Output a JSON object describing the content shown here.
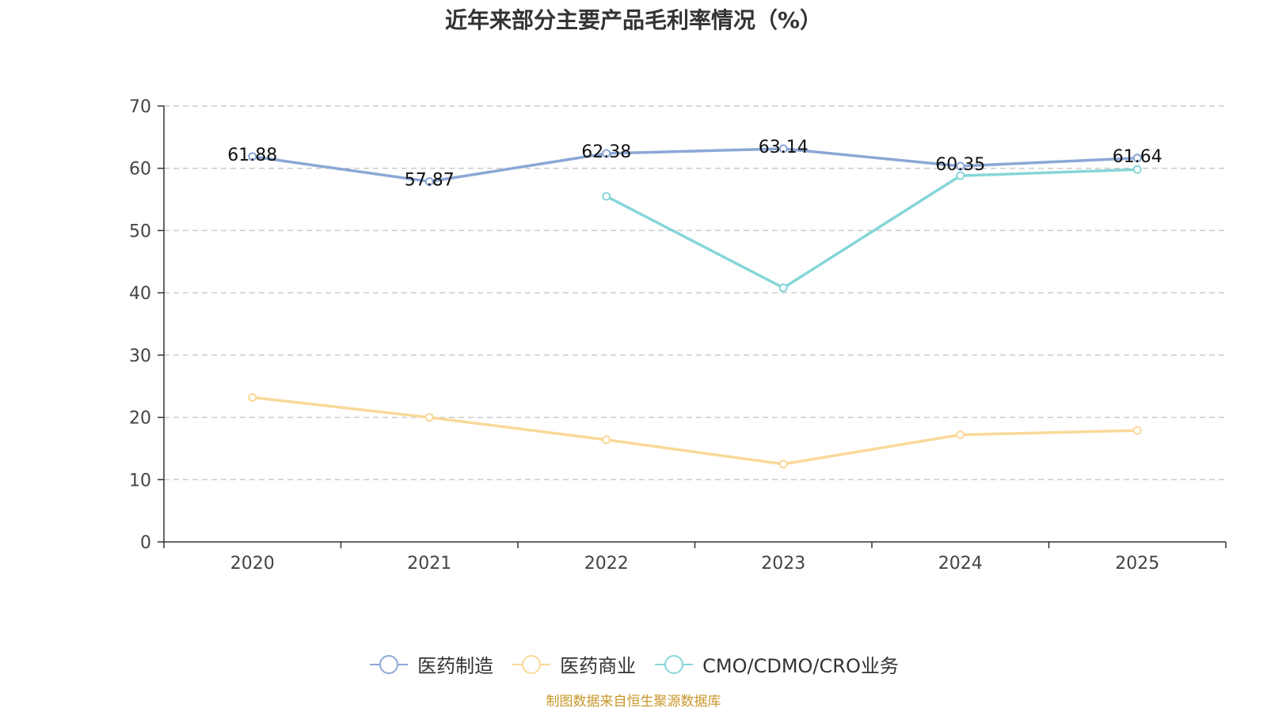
{
  "chart_data": {
    "type": "line",
    "title": "近年来部分主要产品毛利率情况（%）",
    "xlabel": "",
    "ylabel": "",
    "categories": [
      "2020",
      "2021",
      "2022",
      "2023",
      "2024",
      "2025"
    ],
    "ylim": [
      0,
      70
    ],
    "yticks": [
      0,
      10,
      20,
      30,
      40,
      50,
      60,
      70
    ],
    "grid": true,
    "legend_position": "bottom",
    "series": [
      {
        "name": "医药制造",
        "color": "#8ba7d6",
        "values": [
          61.88,
          57.87,
          62.38,
          63.14,
          60.35,
          61.64
        ],
        "labels": [
          "61.88",
          "57.87",
          "62.38",
          "63.14",
          "60.35",
          "61.64"
        ]
      },
      {
        "name": "医药商业",
        "color": "#fad898",
        "values": [
          23.2,
          20.0,
          16.4,
          12.5,
          17.2,
          17.9
        ],
        "labels": []
      },
      {
        "name": "CMO/CDMO/CRO业务",
        "color": "#86d6d8",
        "values": [
          null,
          null,
          55.5,
          40.8,
          58.8,
          59.8
        ],
        "labels": []
      }
    ]
  },
  "source": {
    "text": "制图数据来自恒生聚源数据库",
    "color": "#c8962a"
  }
}
